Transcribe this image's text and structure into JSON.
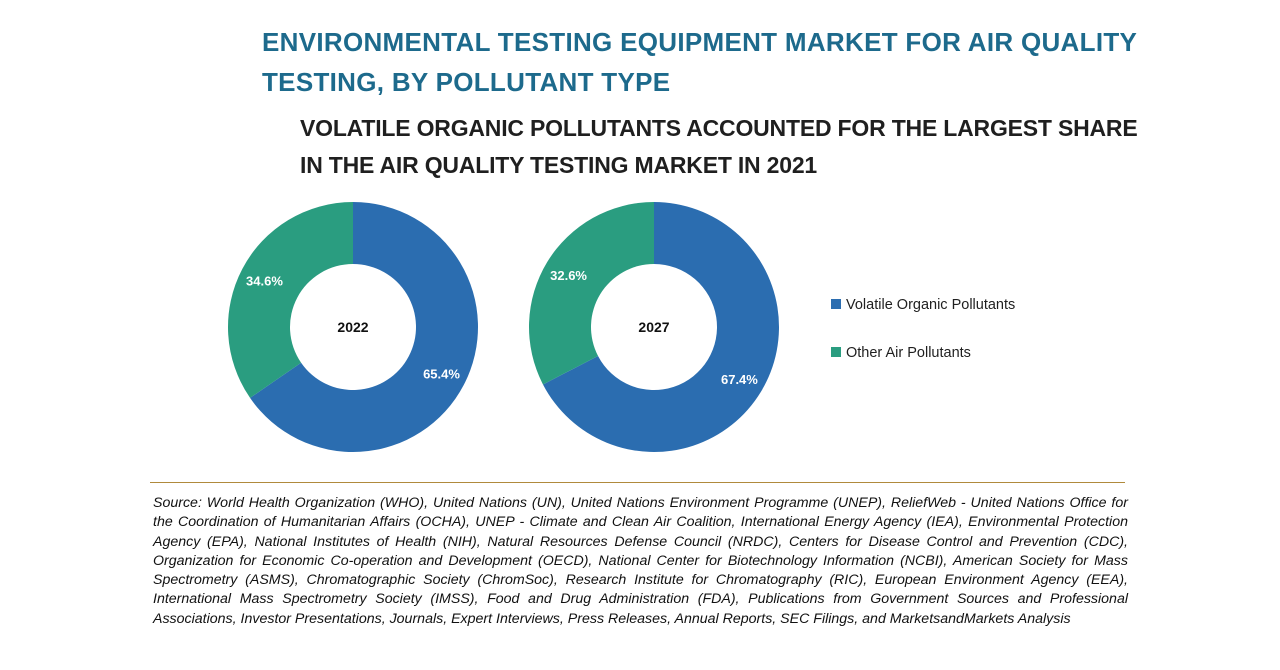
{
  "title": "ENVIRONMENTAL TESTING EQUIPMENT MARKET FOR AIR QUALITY TESTING, BY POLLUTANT TYPE",
  "subtitle": "VOLATILE ORGANIC POLLUTANTS ACCOUNTED FOR THE LARGEST SHARE IN THE AIR QUALITY TESTING MARKET IN 2021",
  "source": "Source: World Health Organization (WHO), United Nations (UN), United Nations Environment Programme (UNEP), ReliefWeb - United Nations Office for the Coordination of Humanitarian Affairs (OCHA), UNEP - Climate and Clean Air Coalition, International Energy Agency (IEA), Environmental Protection Agency (EPA), National Institutes of Health (NIH), Natural Resources Defense Council (NRDC), Centers for Disease Control and Prevention (CDC), Organization for Economic Co-operation and Development (OECD), National Center for Biotechnology Information (NCBI), American Society for Mass Spectrometry (ASMS), Chromatographic Society (ChromSoc), Research Institute for Chromatography (RIC), European Environment Agency (EEA), International Mass Spectrometry Society (IMSS), Food and Drug Administration (FDA), Publications from Government Sources and Professional Associations, Investor Presentations, Journals, Expert Interviews, Press Releases, Annual Reports, SEC Filings, and MarketsandMarkets Analysis",
  "colors": {
    "volatile": "#2b6db0",
    "other": "#2a9d80",
    "title": "#1d6a8c"
  },
  "chart_data": [
    {
      "type": "pie",
      "variant": "donut",
      "center_label": "2022",
      "labels": [
        "Volatile Organic Pollutants",
        "Other Air Pollutants"
      ],
      "values": [
        65.4,
        34.6
      ],
      "value_labels": [
        "65.4%",
        "34.6%"
      ],
      "legend_position": "right"
    },
    {
      "type": "pie",
      "variant": "donut",
      "center_label": "2027",
      "labels": [
        "Volatile Organic Pollutants",
        "Other Air Pollutants"
      ],
      "values": [
        67.4,
        32.6
      ],
      "value_labels": [
        "67.4%",
        "32.6%"
      ],
      "legend_position": "right"
    }
  ]
}
